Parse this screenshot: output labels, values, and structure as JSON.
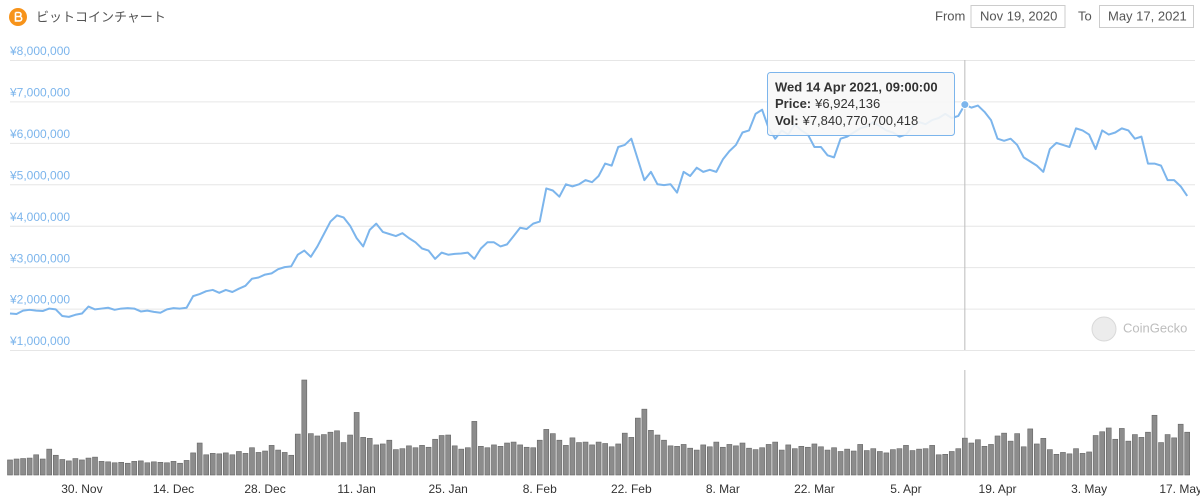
{
  "header": {
    "title": "ビットコインチャート",
    "from_label": "From",
    "from": "Nov 19, 2020",
    "to_label": "To",
    "to": "May 17, 2021"
  },
  "watermark": "CoinGecko",
  "chart_data": {
    "type": "line",
    "categories": [
      null,
      null,
      null,
      null,
      null,
      null,
      null,
      null,
      null,
      null,
      null,
      "30. Nov",
      null,
      null,
      null,
      null,
      null,
      null,
      null,
      null,
      null,
      null,
      null,
      null,
      null,
      "14. Dec",
      null,
      null,
      null,
      null,
      null,
      null,
      null,
      null,
      null,
      null,
      null,
      null,
      null,
      "28. Dec",
      null,
      null,
      null,
      null,
      null,
      null,
      null,
      null,
      null,
      null,
      null,
      null,
      null,
      "11. Jan",
      null,
      null,
      null,
      null,
      null,
      null,
      null,
      null,
      null,
      null,
      null,
      null,
      null,
      "25. Jan",
      null,
      null,
      null,
      null,
      null,
      null,
      null,
      null,
      null,
      null,
      null,
      null,
      null,
      "8. Feb",
      null,
      null,
      null,
      null,
      null,
      null,
      null,
      null,
      null,
      null,
      null,
      null,
      null,
      "22. Feb",
      null,
      null,
      null,
      null,
      null,
      null,
      null,
      null,
      null,
      null,
      null,
      null,
      null,
      "8. Mar",
      null,
      null,
      null,
      null,
      null,
      null,
      null,
      null,
      null,
      null,
      null,
      null,
      null,
      "22. Mar",
      null,
      null,
      null,
      null,
      null,
      null,
      null,
      null,
      null,
      null,
      null,
      null,
      null,
      "5. Apr",
      null,
      null,
      null,
      null,
      null,
      null,
      null,
      null,
      null,
      null,
      null,
      null,
      null,
      "19. Apr",
      null,
      null,
      null,
      null,
      null,
      null,
      null,
      null,
      null,
      null,
      null,
      null,
      null,
      "3. May",
      null,
      null,
      null,
      null,
      null,
      null,
      null,
      null,
      null,
      null,
      null,
      null,
      null,
      "17. May",
      null
    ],
    "series": [
      {
        "name": "Price:",
        "color": "#7cb5ec",
        "values": [
          1880000.0,
          1870000.0,
          1950000.0,
          1970000.0,
          1950000.0,
          1940000.0,
          2000000.0,
          1980000.0,
          1820000.0,
          1800000.0,
          1850000.0,
          1880000.0,
          2050000.0,
          1980000.0,
          2000000.0,
          2020000.0,
          1970000.0,
          2000000.0,
          2010000.0,
          2000000.0,
          1930000.0,
          1950000.0,
          1920000.0,
          1900000.0,
          1980000.0,
          2010000.0,
          2000000.0,
          2020000.0,
          2300000.0,
          2350000.0,
          2420000.0,
          2450000.0,
          2380000.0,
          2450000.0,
          2400000.0,
          2480000.0,
          2550000.0,
          2720000.0,
          2750000.0,
          2820000.0,
          2850000.0,
          2950000.0,
          3000000.0,
          3020000.0,
          3300000.0,
          3400000.0,
          3250000.0,
          3500000.0,
          3800000.0,
          4100000.0,
          4250000.0,
          4200000.0,
          4000000.0,
          3700000.0,
          3500000.0,
          3900000.0,
          4050000.0,
          3850000.0,
          3800000.0,
          3750000.0,
          3820000.0,
          3700000.0,
          3600000.0,
          3450000.0,
          3400000.0,
          3200000.0,
          3350000.0,
          3300000.0,
          3320000.0,
          3330000.0,
          3350000.0,
          3200000.0,
          3450000.0,
          3600000.0,
          3600000.0,
          3500000.0,
          3550000.0,
          3750000.0,
          3950000.0,
          3920000.0,
          4050000.0,
          4100000.0,
          4900000.0,
          4850000.0,
          4700000.0,
          5000000.0,
          4950000.0,
          5000000.0,
          5100000.0,
          5050000.0,
          5200000.0,
          5500000.0,
          5450000.0,
          5900000.0,
          5950000.0,
          6100000.0,
          5600000.0,
          5100000.0,
          5300000.0,
          5000000.0,
          4980000.0,
          5000000.0,
          4800000.0,
          5300000.0,
          5200000.0,
          5400000.0,
          5300000.0,
          5350000.0,
          5300000.0,
          5600000.0,
          5800000.0,
          5950000.0,
          6250000.0,
          6300000.0,
          6700000.0,
          6800000.0,
          6350000.0,
          6100000.0,
          6300000.0,
          6200000.0,
          6450000.0,
          6300000.0,
          6200000.0,
          5900000.0,
          5900000.0,
          5700000.0,
          5650000.0,
          6100000.0,
          6150000.0,
          6250000.0,
          6350000.0,
          6400000.0,
          6500000.0,
          6400000.0,
          6300000.0,
          6250000.0,
          6150000.0,
          6200000.0,
          6400000.0,
          6500000.0,
          6450000.0,
          6550000.0,
          6600000.0,
          6700000.0,
          6600000.0,
          6650000.0,
          6924136,
          6850000.0,
          6900000.0,
          6750000.0,
          6550000.0,
          6100000.0,
          6050000.0,
          6100000.0,
          5950000.0,
          5650000.0,
          5550000.0,
          5450000.0,
          5300000.0,
          5850000.0,
          6000000.0,
          5950000.0,
          5900000.0,
          6350000.0,
          6300000.0,
          6200000.0,
          5850000.0,
          6300000.0,
          6200000.0,
          6250000.0,
          6350000.0,
          6300000.0,
          6100000.0,
          6150000.0,
          5500000.0,
          5500000.0,
          5450000.0,
          5100000.0,
          5100000.0,
          4950000.0,
          4720000.0
        ]
      },
      {
        "name": "Vol:",
        "type": "bar",
        "color": "#8c8c8c",
        "values": [
          3200000000000.0,
          3400000000000.0,
          3500000000000.0,
          3600000000000.0,
          4300000000000.0,
          3400000000000.0,
          5500000000000.0,
          4200000000000.0,
          3300000000000.0,
          3000000000000.0,
          3500000000000.0,
          3200000000000.0,
          3600000000000.0,
          3800000000000.0,
          2900000000000.0,
          2800000000000.0,
          2600000000000.0,
          2700000000000.0,
          2500000000000.0,
          2900000000000.0,
          3000000000000.0,
          2600000000000.0,
          2800000000000.0,
          2700000000000.0,
          2600000000000.0,
          2900000000000.0,
          2500000000000.0,
          3100000000000.0,
          4700000000000.0,
          6800000000000.0,
          4300000000000.0,
          4600000000000.0,
          4500000000000.0,
          4700000000000.0,
          4300000000000.0,
          5000000000000.0,
          4600000000000.0,
          5800000000000.0,
          4800000000000.0,
          5100000000000.0,
          6300000000000.0,
          5300000000000.0,
          4800000000000.0,
          4200000000000.0,
          8700000000000.0,
          20200000000000.0,
          8800000000000.0,
          8300000000000.0,
          8600000000000.0,
          9100000000000.0,
          9400000000000.0,
          6900000000000.0,
          8500000000000.0,
          13300000000000.0,
          8000000000000.0,
          7800000000000.0,
          6400000000000.0,
          6600000000000.0,
          7400000000000.0,
          5400000000000.0,
          5600000000000.0,
          6200000000000.0,
          5800000000000.0,
          6300000000000.0,
          5900000000000.0,
          7600000000000.0,
          8400000000000.0,
          8500000000000.0,
          6200000000000.0,
          5500000000000.0,
          5800000000000.0,
          11400000000000.0,
          6100000000000.0,
          5800000000000.0,
          6400000000000.0,
          6100000000000.0,
          6800000000000.0,
          7000000000000.0,
          6400000000000.0,
          5900000000000.0,
          5800000000000.0,
          7400000000000.0,
          9700000000000.0,
          8800000000000.0,
          7400000000000.0,
          6300000000000.0,
          7900000000000.0,
          6900000000000.0,
          7000000000000.0,
          6400000000000.0,
          7000000000000.0,
          6700000000000.0,
          6000000000000.0,
          6600000000000.0,
          8900000000000.0,
          8000000000000.0,
          12100000000000.0,
          14000000000000.0,
          9500000000000.0,
          8500000000000.0,
          7400000000000.0,
          6200000000000.0,
          6100000000000.0,
          6500000000000.0,
          5700000000000.0,
          5300000000000.0,
          6400000000000.0,
          6000000000000.0,
          7000000000000.0,
          5900000000000.0,
          6500000000000.0,
          6200000000000.0,
          6800000000000.0,
          5700000000000.0,
          5400000000000.0,
          5800000000000.0,
          6500000000000.0,
          7000000000000.0,
          5300000000000.0,
          6400000000000.0,
          5600000000000.0,
          6100000000000.0,
          5900000000000.0,
          6600000000000.0,
          6000000000000.0,
          5300000000000.0,
          5800000000000.0,
          5000000000000.0,
          5500000000000.0,
          5100000000000.0,
          6500000000000.0,
          5200000000000.0,
          5600000000000.0,
          5000000000000.0,
          4700000000000.0,
          5400000000000.0,
          5600000000000.0,
          6300000000000.0,
          5200000000000.0,
          5500000000000.0,
          5600000000000.0,
          6300000000000.0,
          4300000000000.0,
          4400000000000.0,
          5000000000000.0,
          5600000000000.0,
          7840770700418,
          6800000000000.0,
          7500000000000.0,
          6100000000000.0,
          6500000000000.0,
          8300000000000.0,
          8900000000000.0,
          7200000000000.0,
          8800000000000.0,
          6000000000000.0,
          9800000000000.0,
          6600000000000.0,
          7800000000000.0,
          5400000000000.0,
          4400000000000.0,
          4800000000000.0,
          4500000000000.0,
          5600000000000.0,
          4600000000000.0,
          4900000000000.0,
          8400000000000.0,
          9200000000000.0,
          10000000000000.0,
          7600000000000.0,
          9900000000000.0,
          7200000000000.0,
          8600000000000.0,
          8000000000000.0,
          9100000000000.0,
          12700000000000.0,
          6900000000000.0,
          8600000000000.0,
          7900000000000.0,
          10800000000000.0,
          9100000000000.0
        ]
      }
    ],
    "ylim": [
      1000000,
      8000000
    ],
    "yticks": [
      {
        "value": 1000000,
        "label": "¥1,000,000"
      },
      {
        "value": 2000000,
        "label": "¥2,000,000"
      },
      {
        "value": 3000000,
        "label": "¥3,000,000"
      },
      {
        "value": 4000000,
        "label": "¥4,000,000"
      },
      {
        "value": 5000000,
        "label": "¥5,000,000"
      },
      {
        "value": 6000000,
        "label": "¥6,000,000"
      },
      {
        "value": 7000000,
        "label": "¥7,000,000"
      },
      {
        "value": 8000000,
        "label": "¥8,000,000"
      }
    ],
    "grid": true,
    "tooltip": {
      "title": "Wed 14 Apr 2021, 09:00:00",
      "values": [
        "¥6,924,136",
        "¥7,840,770,700,418"
      ]
    }
  }
}
